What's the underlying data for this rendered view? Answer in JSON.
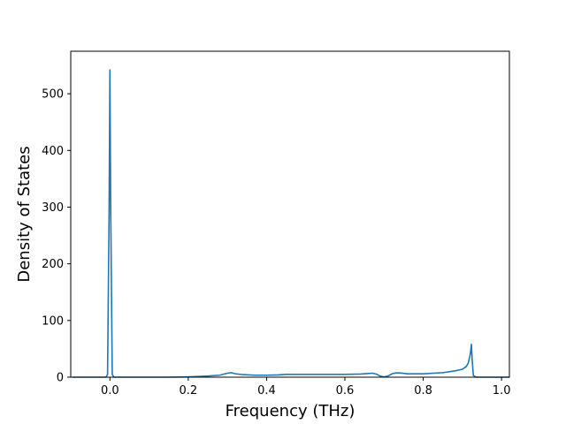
{
  "chart_data": {
    "type": "line",
    "title": "",
    "xlabel": "Frequency (THz)",
    "ylabel": "Density of States",
    "xlim": [
      -0.1,
      1.02
    ],
    "ylim": [
      0,
      575
    ],
    "x_ticks": [
      0.0,
      0.2,
      0.4,
      0.6,
      0.8,
      1.0
    ],
    "x_tick_labels": [
      "0.0",
      "0.2",
      "0.4",
      "0.6",
      "0.8",
      "1.0"
    ],
    "y_ticks": [
      0,
      100,
      200,
      300,
      400,
      500
    ],
    "y_tick_labels": [
      "0",
      "100",
      "200",
      "300",
      "400",
      "500"
    ],
    "grid": false,
    "legend": "none",
    "series": [
      {
        "color": "#1f77b4",
        "x": [
          -0.095,
          -0.01,
          -0.006,
          -0.002,
          0.0,
          0.002,
          0.006,
          0.01,
          0.05,
          0.1,
          0.15,
          0.2,
          0.22,
          0.25,
          0.28,
          0.3,
          0.31,
          0.32,
          0.34,
          0.37,
          0.4,
          0.43,
          0.45,
          0.5,
          0.55,
          0.6,
          0.64,
          0.66,
          0.67,
          0.68,
          0.69,
          0.7,
          0.71,
          0.72,
          0.73,
          0.74,
          0.76,
          0.8,
          0.85,
          0.88,
          0.9,
          0.91,
          0.915,
          0.92,
          0.923,
          0.925,
          0.928,
          0.935,
          0.95,
          1.0,
          1.02
        ],
        "y": [
          0,
          0,
          5,
          300,
          542,
          300,
          5,
          0,
          0,
          0,
          0,
          0.5,
          1,
          2,
          3.5,
          7,
          8,
          6,
          4.5,
          3.5,
          3.5,
          4,
          5,
          5,
          5,
          5,
          5.5,
          6.5,
          7,
          5.5,
          2,
          0.5,
          2,
          6,
          7.5,
          7.5,
          6,
          6,
          8,
          11,
          14,
          19,
          25,
          40,
          58,
          30,
          3,
          0,
          0,
          0,
          0
        ]
      }
    ]
  }
}
